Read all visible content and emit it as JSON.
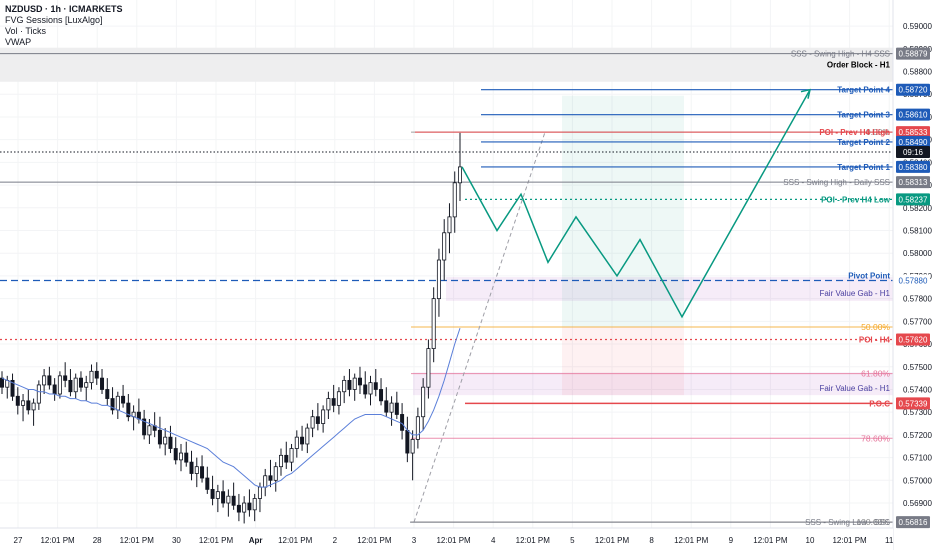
{
  "header": {
    "symbol_line": "NZDUSD · 1h · ICMARKETS",
    "indicators": [
      "FVG Sessions [LuxAlgo]",
      "Vol · Ticks",
      "VWAP"
    ]
  },
  "chart_data": {
    "type": "candlestick",
    "ylim": [
      0.5679,
      0.59115
    ],
    "y_ticks": [
      0.569,
      0.57,
      0.571,
      0.572,
      0.573,
      0.574,
      0.575,
      0.576,
      0.577,
      0.578,
      0.579,
      0.58,
      0.581,
      0.582,
      0.583,
      0.584,
      0.585,
      0.586,
      0.587,
      0.588,
      0.589,
      0.59
    ],
    "x_ticks": [
      "27",
      "12:01 PM",
      "28",
      "12:01 PM",
      "30",
      "12:01 PM",
      "Apr",
      "12:01 PM",
      "2",
      "12:01 PM",
      "3",
      "12:01 PM",
      "4",
      "12:01 PM",
      "5",
      "12:01 PM",
      "8",
      "12:01 PM",
      "9",
      "12:01 PM",
      "10",
      "12:01 PM",
      "11"
    ],
    "price_lines": [
      {
        "text": "SSS - Swing High - H4 SSS",
        "price": 0.58879,
        "tag": "0.58879",
        "color": "#787b86"
      },
      {
        "text": "Target Point 4",
        "price": 0.5872,
        "tag": "0.58720",
        "color": "#1e5bb8"
      },
      {
        "text": "Target Point 3",
        "price": 0.5861,
        "tag": "0.58610",
        "color": "#1e5bb8"
      },
      {
        "text": "POI - Prev H4 High",
        "price": 0.58533,
        "tag": "0.58533",
        "color": "#e5484d"
      },
      {
        "text": "Target Point 2",
        "price": 0.5849,
        "tag": "0.58490",
        "color": "#1e5bb8"
      },
      {
        "text": "Target Point 1",
        "price": 0.5838,
        "tag": "0.58380",
        "color": "#1e5bb8"
      },
      {
        "text": "SSS - Swing High - Daily SSS",
        "price": 0.58313,
        "tag": "0.58313",
        "color": "#787b86"
      },
      {
        "text": "POI - Prev H4 Low",
        "price": 0.58237,
        "tag": "0.58237",
        "color": "#089981"
      },
      {
        "text": "Pivot Point",
        "price": 0.5788,
        "tag": "0.57880",
        "color": "#1e5bb8"
      },
      {
        "text": "POI - H4",
        "price": 0.5762,
        "tag": "0.57620",
        "color": "#e5484d"
      },
      {
        "text": "P.O.C",
        "price": 0.57339,
        "tag": "0.57339",
        "color": "#e5484d"
      },
      {
        "text": "SSS - Swing Low - SSS",
        "price": 0.56816,
        "tag": "0.56816",
        "color": "#787b86"
      }
    ],
    "current_price_tag": "09:16",
    "zones": [
      {
        "label": "Order Block - H1",
        "from": 0.58755,
        "to": 0.58905
      },
      {
        "label": "Fair Value Gab - H1",
        "from": 0.5779,
        "to": 0.57895
      },
      {
        "label": "Fair Value Gab - H1",
        "from": 0.57375,
        "to": 0.57475
      }
    ],
    "fib_levels": [
      {
        "label": "0.00%",
        "price": 0.58533
      },
      {
        "label": "50.00%",
        "price": 0.57675
      },
      {
        "label": "61.80%",
        "price": 0.5747
      },
      {
        "label": "78.60%",
        "price": 0.57185
      },
      {
        "label": "100.00%",
        "price": 0.56816
      }
    ],
    "projection_path": [
      0.5838,
      0.581,
      0.5826,
      0.5796,
      0.5816,
      0.579,
      0.5806,
      0.5772,
      0.5872
    ],
    "candles_approx": [
      [
        0.5745,
        0.5748,
        0.5738,
        0.5741
      ],
      [
        0.5741,
        0.5746,
        0.5736,
        0.5744
      ],
      [
        0.5744,
        0.5747,
        0.5735,
        0.5737
      ],
      [
        0.5737,
        0.5741,
        0.5729,
        0.5733
      ],
      [
        0.5733,
        0.5738,
        0.5726,
        0.5735
      ],
      [
        0.5735,
        0.574,
        0.5729,
        0.5731
      ],
      [
        0.5731,
        0.5736,
        0.5724,
        0.5734
      ],
      [
        0.5734,
        0.5744,
        0.5731,
        0.5742
      ],
      [
        0.5742,
        0.5749,
        0.5738,
        0.5746
      ],
      [
        0.5746,
        0.575,
        0.574,
        0.5742
      ],
      [
        0.5742,
        0.5745,
        0.5735,
        0.5738
      ],
      [
        0.5738,
        0.5748,
        0.5736,
        0.5746
      ],
      [
        0.5746,
        0.5752,
        0.5741,
        0.5744
      ],
      [
        0.5744,
        0.5749,
        0.5737,
        0.5739
      ],
      [
        0.5739,
        0.5747,
        0.5736,
        0.5745
      ],
      [
        0.5745,
        0.5748,
        0.5739,
        0.5741
      ],
      [
        0.5741,
        0.5746,
        0.5735,
        0.5743
      ],
      [
        0.5743,
        0.5751,
        0.574,
        0.5748
      ],
      [
        0.5748,
        0.5752,
        0.5742,
        0.5745
      ],
      [
        0.5745,
        0.5749,
        0.5738,
        0.574
      ],
      [
        0.574,
        0.5745,
        0.5733,
        0.5736
      ],
      [
        0.5736,
        0.5741,
        0.5729,
        0.5731
      ],
      [
        0.5731,
        0.5739,
        0.5727,
        0.5737
      ],
      [
        0.5737,
        0.5742,
        0.5732,
        0.5734
      ],
      [
        0.5734,
        0.5738,
        0.5726,
        0.5728
      ],
      [
        0.5728,
        0.5733,
        0.5722,
        0.573
      ],
      [
        0.573,
        0.5736,
        0.5725,
        0.5727
      ],
      [
        0.5727,
        0.5731,
        0.5718,
        0.572
      ],
      [
        0.572,
        0.5727,
        0.5716,
        0.5724
      ],
      [
        0.5724,
        0.573,
        0.5719,
        0.5722
      ],
      [
        0.5722,
        0.5728,
        0.5714,
        0.5716
      ],
      [
        0.5716,
        0.5723,
        0.5711,
        0.5719
      ],
      [
        0.5719,
        0.5724,
        0.5712,
        0.5714
      ],
      [
        0.5714,
        0.5719,
        0.5707,
        0.5709
      ],
      [
        0.5709,
        0.5716,
        0.5704,
        0.5712
      ],
      [
        0.5712,
        0.5717,
        0.5706,
        0.5708
      ],
      [
        0.5708,
        0.5713,
        0.57,
        0.5703
      ],
      [
        0.5703,
        0.571,
        0.5697,
        0.5706
      ],
      [
        0.5706,
        0.5711,
        0.5699,
        0.5701
      ],
      [
        0.5701,
        0.5706,
        0.5694,
        0.5696
      ],
      [
        0.5696,
        0.5702,
        0.5689,
        0.5692
      ],
      [
        0.5692,
        0.5698,
        0.5686,
        0.5695
      ],
      [
        0.5695,
        0.57,
        0.5688,
        0.569
      ],
      [
        0.569,
        0.5696,
        0.5684,
        0.5693
      ],
      [
        0.5693,
        0.5699,
        0.5687,
        0.5689
      ],
      [
        0.5689,
        0.5694,
        0.5682,
        0.5686
      ],
      [
        0.5686,
        0.5693,
        0.5681,
        0.569
      ],
      [
        0.569,
        0.5696,
        0.5684,
        0.5687
      ],
      [
        0.5687,
        0.5694,
        0.5682,
        0.5692
      ],
      [
        0.5692,
        0.5699,
        0.5686,
        0.5697
      ],
      [
        0.5697,
        0.5705,
        0.5693,
        0.5702
      ],
      [
        0.5702,
        0.5709,
        0.5697,
        0.57
      ],
      [
        0.57,
        0.5708,
        0.5695,
        0.5706
      ],
      [
        0.5706,
        0.5714,
        0.5702,
        0.5711
      ],
      [
        0.5711,
        0.5717,
        0.5705,
        0.5708
      ],
      [
        0.5708,
        0.5716,
        0.5704,
        0.5714
      ],
      [
        0.5714,
        0.5722,
        0.571,
        0.5719
      ],
      [
        0.5719,
        0.5724,
        0.5713,
        0.5716
      ],
      [
        0.5716,
        0.5725,
        0.5712,
        0.5723
      ],
      [
        0.5723,
        0.5731,
        0.5719,
        0.5728
      ],
      [
        0.5728,
        0.5734,
        0.5722,
        0.5725
      ],
      [
        0.5725,
        0.5733,
        0.5721,
        0.5731
      ],
      [
        0.5731,
        0.5739,
        0.5727,
        0.5736
      ],
      [
        0.5736,
        0.5742,
        0.573,
        0.5733
      ],
      [
        0.5733,
        0.5741,
        0.5729,
        0.5739
      ],
      [
        0.5739,
        0.5746,
        0.5734,
        0.5744
      ],
      [
        0.5744,
        0.5749,
        0.5737,
        0.574
      ],
      [
        0.574,
        0.5747,
        0.5735,
        0.5745
      ],
      [
        0.5745,
        0.575,
        0.5738,
        0.5742
      ],
      [
        0.5742,
        0.5748,
        0.5736,
        0.5738
      ],
      [
        0.5738,
        0.5746,
        0.5733,
        0.5743
      ],
      [
        0.5743,
        0.5749,
        0.5737,
        0.574
      ],
      [
        0.574,
        0.5745,
        0.5733,
        0.5735
      ],
      [
        0.5735,
        0.5741,
        0.5728,
        0.573
      ],
      [
        0.573,
        0.5737,
        0.5724,
        0.5734
      ],
      [
        0.5734,
        0.5739,
        0.5727,
        0.5729
      ],
      [
        0.5729,
        0.5734,
        0.5718,
        0.5722
      ],
      [
        0.5722,
        0.5728,
        0.5708,
        0.5712
      ],
      [
        0.5712,
        0.5722,
        0.57,
        0.5718
      ],
      [
        0.5718,
        0.5732,
        0.5714,
        0.5728
      ],
      [
        0.5728,
        0.5745,
        0.5722,
        0.5741
      ],
      [
        0.5741,
        0.5762,
        0.5736,
        0.5758
      ],
      [
        0.5758,
        0.5785,
        0.5752,
        0.578
      ],
      [
        0.578,
        0.5802,
        0.5772,
        0.5797
      ],
      [
        0.5797,
        0.5815,
        0.5788,
        0.5809
      ],
      [
        0.5809,
        0.5822,
        0.58,
        0.5816
      ],
      [
        0.5816,
        0.5836,
        0.5809,
        0.5831
      ],
      [
        0.5831,
        0.5853,
        0.5823,
        0.5838
      ]
    ],
    "vwap_approx": [
      0.5745,
      0.5744,
      0.5743,
      0.5742,
      0.5741,
      0.574,
      0.574,
      0.5739,
      0.5739,
      0.5738,
      0.5738,
      0.5737,
      0.5737,
      0.5736,
      0.5736,
      0.5735,
      0.5735,
      0.5734,
      0.5734,
      0.5733,
      0.5733,
      0.5732,
      0.5731,
      0.573,
      0.5729,
      0.5728,
      0.5727,
      0.5726,
      0.5725,
      0.5724,
      0.5723,
      0.5722,
      0.5721,
      0.572,
      0.5719,
      0.5718,
      0.5717,
      0.5716,
      0.5715,
      0.5714,
      0.5712,
      0.571,
      0.5708,
      0.5706,
      0.5704,
      0.5702,
      0.57,
      0.5698,
      0.5697,
      0.5697,
      0.5698,
      0.5699,
      0.57,
      0.5702,
      0.5703,
      0.5705,
      0.5707,
      0.5709,
      0.5711,
      0.5713,
      0.5715,
      0.5717,
      0.5719,
      0.5721,
      0.5723,
      0.5725,
      0.5727,
      0.5728,
      0.5729,
      0.5729,
      0.5729,
      0.5729,
      0.5728,
      0.5727,
      0.5726,
      0.5725,
      0.5722,
      0.572,
      0.572,
      0.5722,
      0.5726,
      0.5731,
      0.5737,
      0.5744,
      0.5752,
      0.576,
      0.5767
    ]
  }
}
